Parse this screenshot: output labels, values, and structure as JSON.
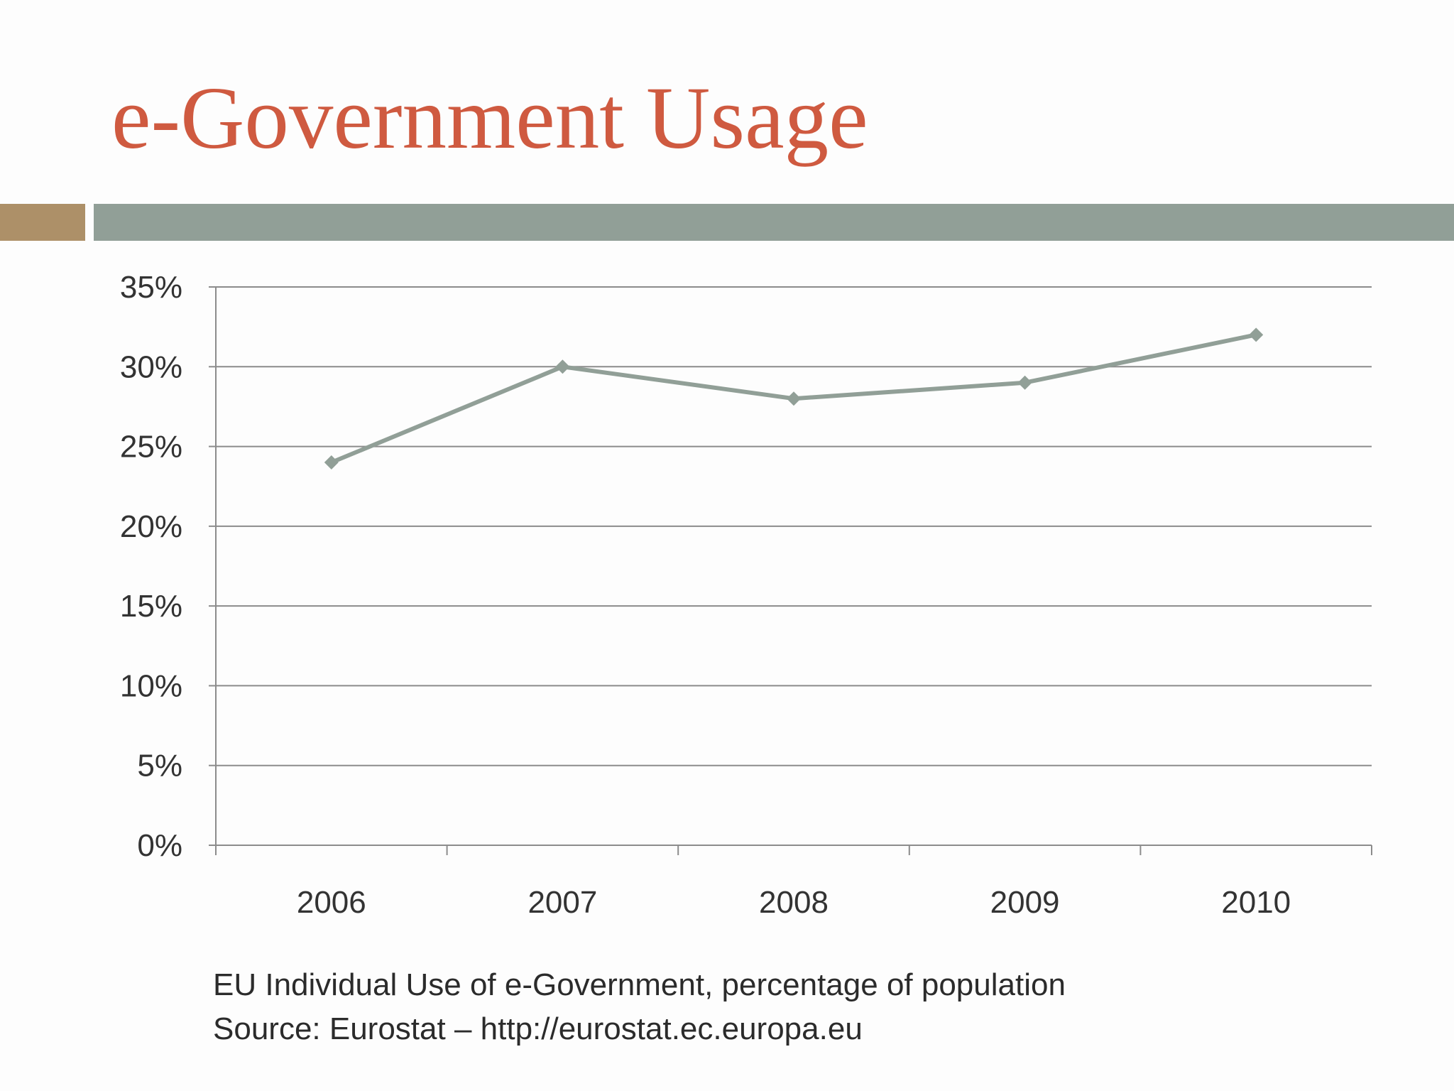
{
  "slide": {
    "title": "e-Government Usage",
    "caption_line1": "EU Individual Use of e-Government, percentage of population",
    "caption_line2": "Source: Eurostat – http://eurostat.ec.europa.eu"
  },
  "colors": {
    "title": "#cf5a40",
    "accent_bar": "#ad9068",
    "main_bar": "#919f97",
    "series": "#919f97",
    "grid": "#8c8c8c"
  },
  "chart_data": {
    "type": "line",
    "categories": [
      "2006",
      "2007",
      "2008",
      "2009",
      "2010"
    ],
    "series": [
      {
        "values": [
          24,
          30,
          28,
          29,
          32
        ]
      }
    ],
    "ylim": [
      0,
      35
    ],
    "yticks": [
      0,
      5,
      10,
      15,
      20,
      25,
      30,
      35
    ],
    "ytick_labels": [
      "0%",
      "5%",
      "10%",
      "15%",
      "20%",
      "25%",
      "30%",
      "35%"
    ],
    "grid": true,
    "marker": "diamond",
    "legend": "none"
  }
}
